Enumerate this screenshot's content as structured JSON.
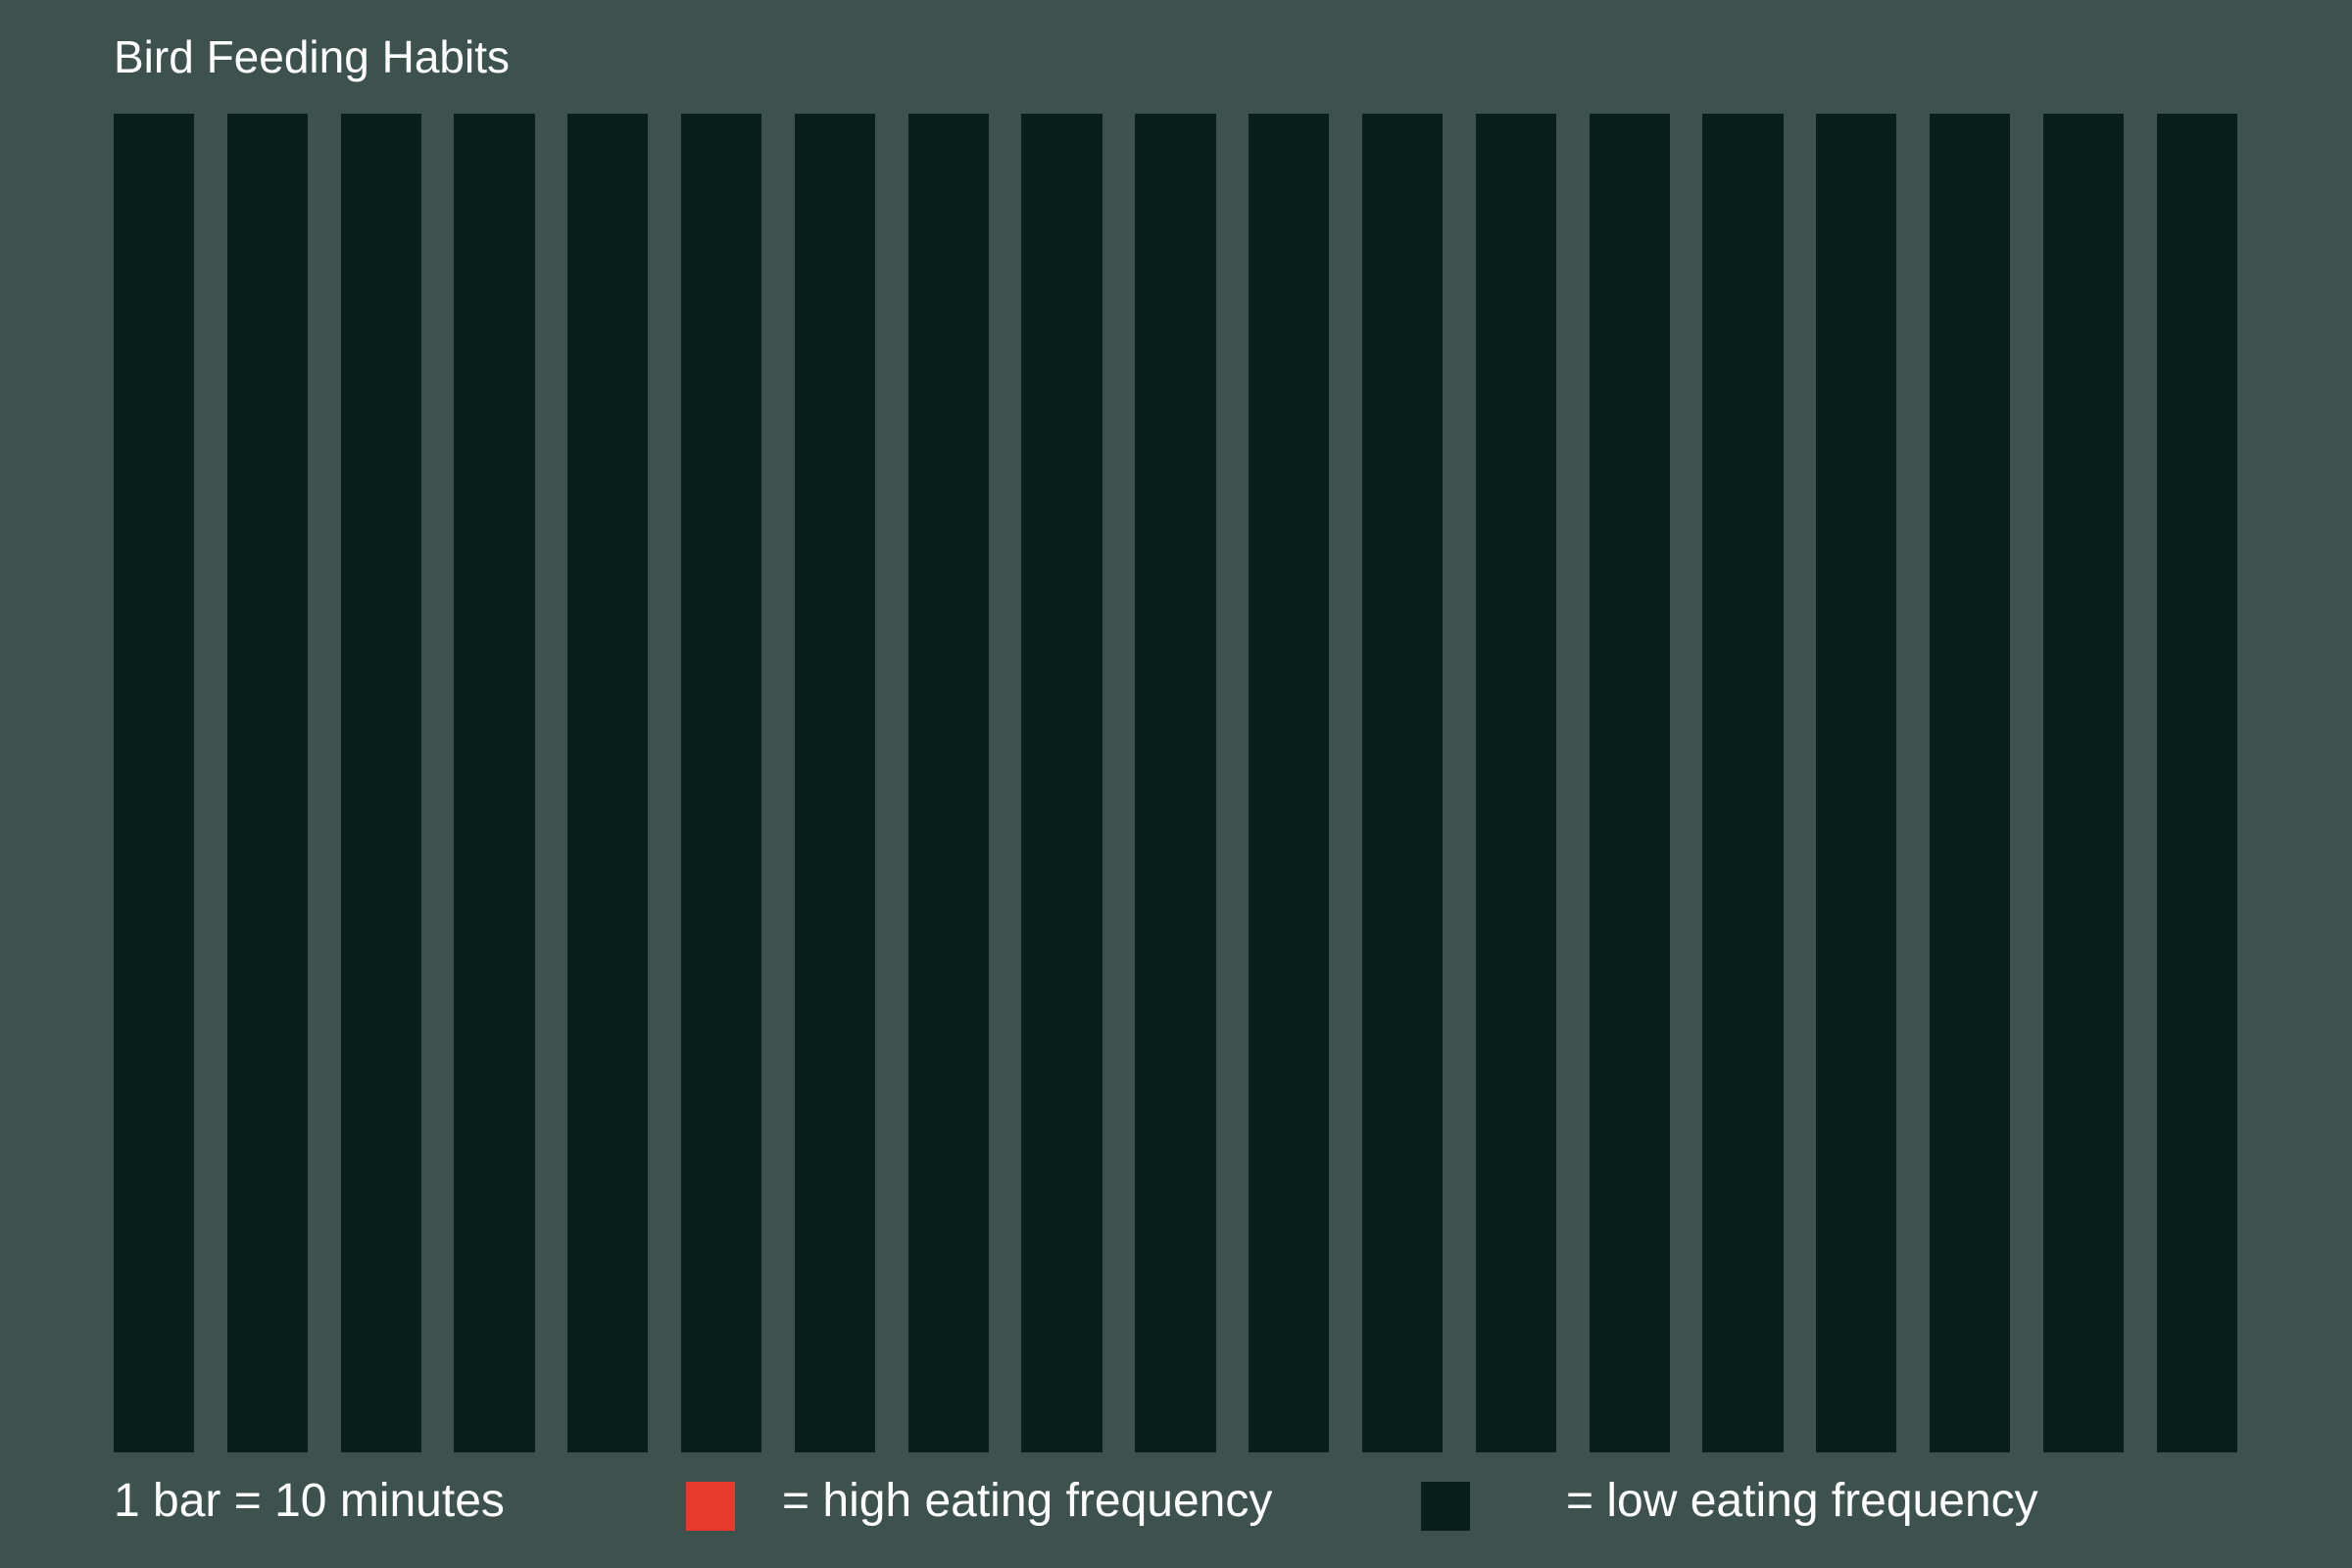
{
  "colors": {
    "background": "#3d524d",
    "low_frequency": "#081f1a",
    "high_frequency": "#e8392e",
    "text": "#ffffff"
  },
  "chart_data": {
    "type": "bar",
    "title": "Bird Feeding Habits",
    "bar_count": 19,
    "values": [
      "low",
      "low",
      "low",
      "low",
      "low",
      "low",
      "low",
      "low",
      "low",
      "low",
      "low",
      "low",
      "low",
      "low",
      "low",
      "low",
      "low",
      "low",
      "low"
    ],
    "legend": {
      "scale": "1 bar = 10 minutes",
      "high_label": "= high eating frequency",
      "low_label": "= low eating frequency"
    }
  }
}
